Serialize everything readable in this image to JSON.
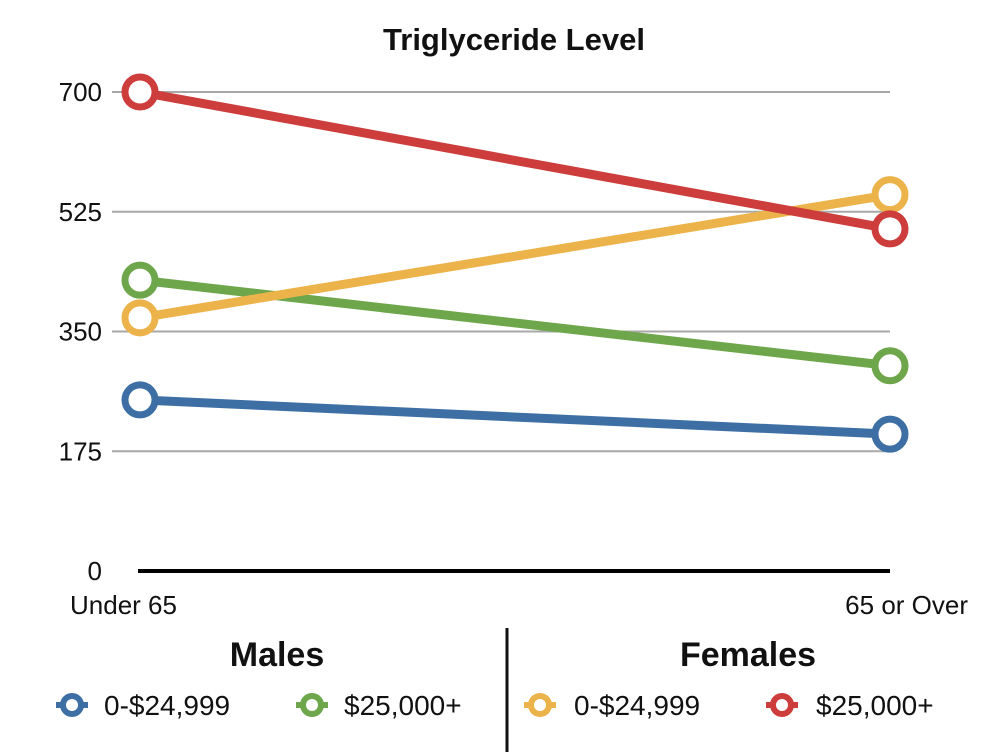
{
  "chart_data": {
    "type": "line",
    "title": "Triglyceride Level",
    "categories": [
      "Under 65",
      "65 or Over"
    ],
    "ylim": [
      0,
      700
    ],
    "yticks": [
      0,
      175,
      350,
      525,
      700
    ],
    "grid": true,
    "series": [
      {
        "group": "Males",
        "name": "0-$24,999",
        "color": "#3e6fa4",
        "values": [
          250,
          200
        ]
      },
      {
        "group": "Males",
        "name": "$25,000+",
        "color": "#6ea64b",
        "values": [
          425,
          300
        ]
      },
      {
        "group": "Females",
        "name": "0-$24,999",
        "color": "#ecb34a",
        "values": [
          370,
          550
        ]
      },
      {
        "group": "Females",
        "name": "$25,000+",
        "color": "#cc3d3b",
        "values": [
          700,
          500
        ]
      }
    ],
    "legend": {
      "placement": "bottom",
      "groups": [
        "Males",
        "Females"
      ]
    }
  }
}
